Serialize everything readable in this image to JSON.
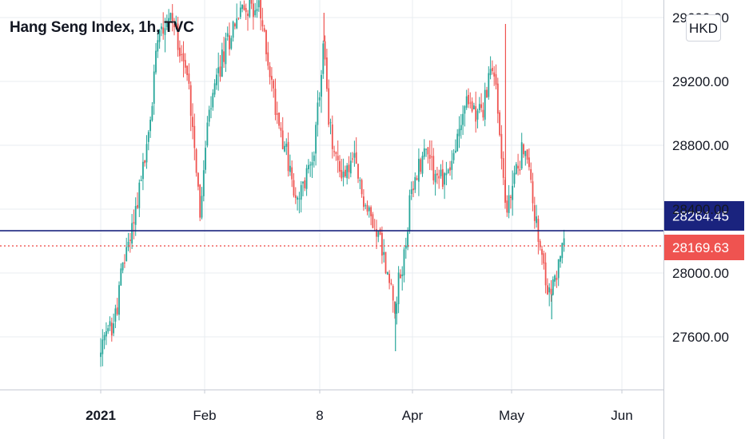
{
  "title": "Hang Seng Index, 1h, TVC",
  "currency": "HKD",
  "colors": {
    "up": "#26a69a",
    "down": "#ef5350",
    "grid": "#e9ecf1",
    "axis_text": "#131722",
    "ref_line": "#1a237e",
    "last_line": "#ef5350"
  },
  "chart_data": {
    "type": "candlestick",
    "grid": true,
    "y_axis": {
      "position": "right",
      "range": [
        27430,
        29620
      ],
      "ticks": [
        27600,
        28000,
        28400,
        28800,
        29200,
        29600
      ],
      "tick_labels": [
        "27600.00",
        "28000.00",
        "28400.00",
        "28800.00",
        "29200.00",
        "29600.00"
      ]
    },
    "x_axis": {
      "ticks": [
        {
          "label": "2021",
          "bold": true,
          "pos": 0.027
        },
        {
          "label": "Feb",
          "bold": false,
          "pos": 0.155
        },
        {
          "label": "8",
          "bold": false,
          "pos": 0.339
        },
        {
          "label": "Apr",
          "bold": false,
          "pos": 0.474
        },
        {
          "label": "May",
          "bold": false,
          "pos": 0.624
        },
        {
          "label": "Jun",
          "bold": false,
          "pos": 0.782
        }
      ]
    },
    "price_levels": [
      {
        "name": "reference",
        "value": 28264.45,
        "label": "28264.45",
        "style": "solid"
      },
      {
        "name": "last",
        "value": 28169.63,
        "label": "28169.63",
        "style": "dotted"
      }
    ],
    "close_path": [
      [
        0.0,
        27480
      ],
      [
        0.01,
        27620
      ],
      [
        0.022,
        27700
      ],
      [
        0.035,
        28050
      ],
      [
        0.05,
        28300
      ],
      [
        0.062,
        28550
      ],
      [
        0.075,
        28830
      ],
      [
        0.082,
        29100
      ],
      [
        0.09,
        29550
      ],
      [
        0.1,
        29580
      ],
      [
        0.112,
        29600
      ],
      [
        0.125,
        29450
      ],
      [
        0.14,
        29150
      ],
      [
        0.148,
        28850
      ],
      [
        0.158,
        28350
      ],
      [
        0.168,
        28900
      ],
      [
        0.18,
        29150
      ],
      [
        0.195,
        29380
      ],
      [
        0.212,
        29580
      ],
      [
        0.235,
        29700
      ],
      [
        0.25,
        29650
      ],
      [
        0.262,
        29400
      ],
      [
        0.276,
        29050
      ],
      [
        0.292,
        28800
      ],
      [
        0.31,
        28400
      ],
      [
        0.325,
        28600
      ],
      [
        0.34,
        28850
      ],
      [
        0.353,
        29450
      ],
      [
        0.36,
        28950
      ],
      [
        0.372,
        28700
      ],
      [
        0.385,
        28620
      ],
      [
        0.4,
        28700
      ],
      [
        0.42,
        28400
      ],
      [
        0.44,
        28250
      ],
      [
        0.455,
        27950
      ],
      [
        0.466,
        27820
      ],
      [
        0.478,
        28050
      ],
      [
        0.49,
        28450
      ],
      [
        0.505,
        28700
      ],
      [
        0.518,
        28800
      ],
      [
        0.53,
        28600
      ],
      [
        0.545,
        28600
      ],
      [
        0.56,
        28750
      ],
      [
        0.575,
        29050
      ],
      [
        0.59,
        29050
      ],
      [
        0.605,
        29000
      ],
      [
        0.62,
        29350
      ],
      [
        0.632,
        28850
      ],
      [
        0.642,
        28350
      ],
      [
        0.655,
        28600
      ],
      [
        0.668,
        28800
      ],
      [
        0.68,
        28600
      ],
      [
        0.692,
        28200
      ],
      [
        0.7,
        28000
      ],
      [
        0.712,
        27850
      ],
      [
        0.724,
        28050
      ],
      [
        0.733,
        28170
      ]
    ],
    "spikes": [
      {
        "t": 0.466,
        "low": 27510
      },
      {
        "t": 0.713,
        "low": 27710
      },
      {
        "t": 0.64,
        "high": 29560
      },
      {
        "t": 0.353,
        "high": 29630
      }
    ]
  }
}
